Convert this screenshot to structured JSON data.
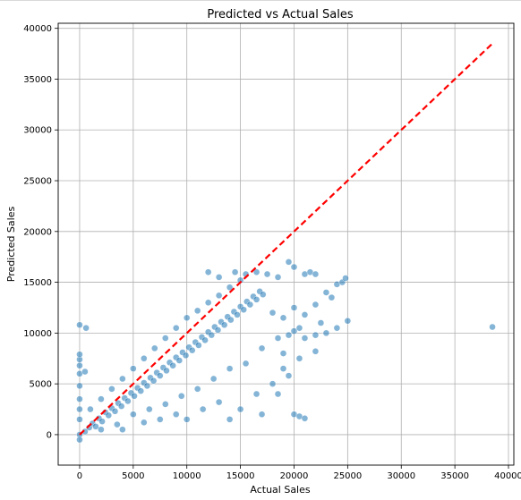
{
  "chart_data": {
    "type": "scatter",
    "title": "Predicted vs Actual Sales",
    "xlabel": "Actual Sales",
    "ylabel": "Predicted Sales",
    "xlim": [
      -2000,
      40500
    ],
    "ylim": [
      -3000,
      40500
    ],
    "xticks": [
      0,
      5000,
      10000,
      15000,
      20000,
      25000,
      30000,
      35000,
      40000
    ],
    "yticks": [
      0,
      5000,
      10000,
      15000,
      20000,
      25000,
      30000,
      35000,
      40000
    ],
    "grid": true,
    "point_color": "#1f77b4",
    "reference_line": {
      "color": "#ff0000",
      "style": "dashed",
      "from": [
        0,
        0
      ],
      "to": [
        38500,
        38500
      ]
    },
    "points": [
      [
        0,
        0
      ],
      [
        0,
        -500
      ],
      [
        0,
        1500
      ],
      [
        0,
        2500
      ],
      [
        0,
        3500
      ],
      [
        0,
        4800
      ],
      [
        0,
        6000
      ],
      [
        0,
        6800
      ],
      [
        0,
        7400
      ],
      [
        0,
        7900
      ],
      [
        0,
        10800
      ],
      [
        600,
        10500
      ],
      [
        500,
        6200
      ],
      [
        500,
        300
      ],
      [
        900,
        700
      ],
      [
        1200,
        1100
      ],
      [
        1500,
        800
      ],
      [
        1800,
        1600
      ],
      [
        2100,
        1300
      ],
      [
        2400,
        2200
      ],
      [
        2700,
        1900
      ],
      [
        3000,
        2600
      ],
      [
        3300,
        2300
      ],
      [
        3600,
        3100
      ],
      [
        3900,
        2800
      ],
      [
        4200,
        3600
      ],
      [
        4500,
        3300
      ],
      [
        4800,
        4100
      ],
      [
        5100,
        3800
      ],
      [
        5400,
        4600
      ],
      [
        5700,
        4300
      ],
      [
        6000,
        5100
      ],
      [
        6300,
        4800
      ],
      [
        6600,
        5600
      ],
      [
        6900,
        5300
      ],
      [
        7200,
        6100
      ],
      [
        7500,
        5800
      ],
      [
        7800,
        6600
      ],
      [
        8100,
        6300
      ],
      [
        8400,
        7100
      ],
      [
        8700,
        6800
      ],
      [
        9000,
        7600
      ],
      [
        9300,
        7300
      ],
      [
        9600,
        8100
      ],
      [
        9900,
        7800
      ],
      [
        10200,
        8600
      ],
      [
        10500,
        8300
      ],
      [
        10800,
        9100
      ],
      [
        11100,
        8800
      ],
      [
        11400,
        9600
      ],
      [
        11700,
        9300
      ],
      [
        12000,
        10100
      ],
      [
        12300,
        9800
      ],
      [
        12600,
        10600
      ],
      [
        12900,
        10300
      ],
      [
        13200,
        11100
      ],
      [
        13500,
        10800
      ],
      [
        13800,
        11600
      ],
      [
        14100,
        11300
      ],
      [
        14400,
        12100
      ],
      [
        14700,
        11800
      ],
      [
        15000,
        12600
      ],
      [
        15300,
        12300
      ],
      [
        15600,
        13100
      ],
      [
        15900,
        12800
      ],
      [
        16200,
        13600
      ],
      [
        16500,
        13300
      ],
      [
        16800,
        14100
      ],
      [
        17100,
        13800
      ],
      [
        1000,
        2500
      ],
      [
        2000,
        3500
      ],
      [
        3000,
        4500
      ],
      [
        4000,
        5500
      ],
      [
        5000,
        6500
      ],
      [
        6000,
        7500
      ],
      [
        7000,
        8500
      ],
      [
        8000,
        9500
      ],
      [
        9000,
        10500
      ],
      [
        10000,
        11500
      ],
      [
        11000,
        12200
      ],
      [
        12000,
        13000
      ],
      [
        13000,
        13700
      ],
      [
        14000,
        14500
      ],
      [
        15000,
        15200
      ],
      [
        2000,
        500
      ],
      [
        3500,
        1000
      ],
      [
        5000,
        2000
      ],
      [
        6500,
        2500
      ],
      [
        8000,
        3000
      ],
      [
        9500,
        3800
      ],
      [
        11000,
        4500
      ],
      [
        12500,
        5500
      ],
      [
        14000,
        6500
      ],
      [
        15500,
        7000
      ],
      [
        17000,
        8500
      ],
      [
        18500,
        9500
      ],
      [
        4000,
        500
      ],
      [
        6000,
        1200
      ],
      [
        7500,
        1500
      ],
      [
        9000,
        2000
      ],
      [
        10000,
        1500
      ],
      [
        11500,
        2500
      ],
      [
        13000,
        3200
      ],
      [
        14000,
        1500
      ],
      [
        15000,
        2500
      ],
      [
        16500,
        4000
      ],
      [
        17000,
        2000
      ],
      [
        18000,
        5000
      ],
      [
        12000,
        16000
      ],
      [
        13000,
        15500
      ],
      [
        14500,
        16000
      ],
      [
        15500,
        15800
      ],
      [
        16500,
        16000
      ],
      [
        17500,
        15800
      ],
      [
        18500,
        15500
      ],
      [
        19500,
        17000
      ],
      [
        20000,
        16500
      ],
      [
        21000,
        15800
      ],
      [
        21500,
        16000
      ],
      [
        22000,
        15800
      ],
      [
        18000,
        12000
      ],
      [
        19000,
        11500
      ],
      [
        20000,
        12500
      ],
      [
        20500,
        10500
      ],
      [
        21000,
        11800
      ],
      [
        22000,
        12800
      ],
      [
        23000,
        14000
      ],
      [
        24000,
        14800
      ],
      [
        24500,
        15000
      ],
      [
        24800,
        15400
      ],
      [
        23500,
        13500
      ],
      [
        22500,
        11000
      ],
      [
        19500,
        9800
      ],
      [
        20000,
        10200
      ],
      [
        21000,
        9500
      ],
      [
        22000,
        9800
      ],
      [
        23000,
        10000
      ],
      [
        24000,
        10500
      ],
      [
        25000,
        11200
      ],
      [
        20500,
        7500
      ],
      [
        22000,
        8200
      ],
      [
        19000,
        6500
      ],
      [
        19500,
        5800
      ],
      [
        20000,
        2000
      ],
      [
        20500,
        1800
      ],
      [
        21000,
        1600
      ],
      [
        18500,
        4000
      ],
      [
        19000,
        8000
      ],
      [
        38500,
        10600
      ]
    ]
  }
}
